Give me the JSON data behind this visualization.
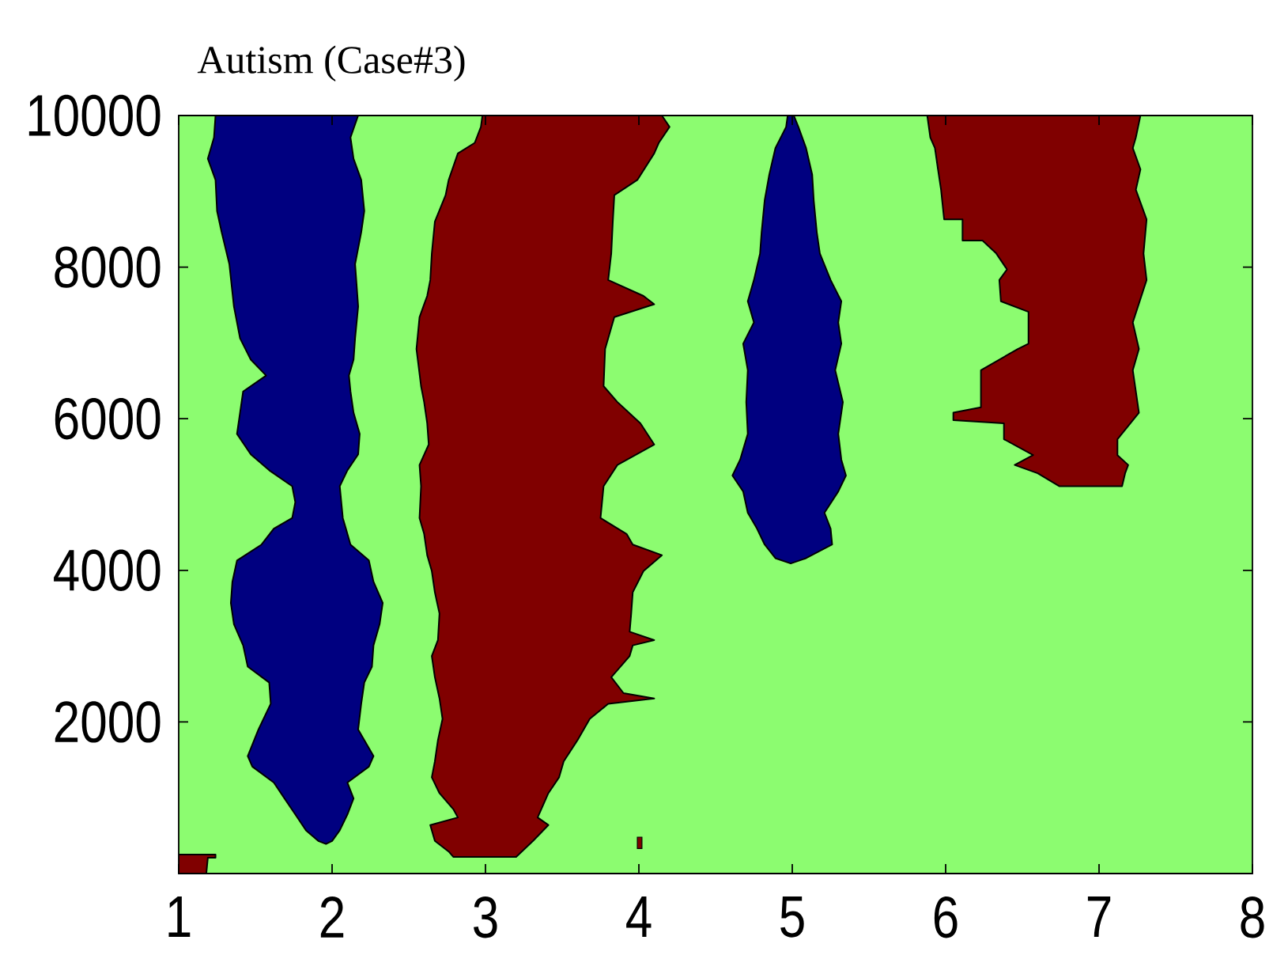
{
  "chart_data": {
    "type": "area",
    "title": "Autism (Case#3)",
    "xlim": [
      1,
      8
    ],
    "xticks": [
      1,
      2,
      3,
      4,
      5,
      6,
      7,
      8
    ],
    "ylim": [
      0,
      10000
    ],
    "yticks": [
      2000,
      4000,
      6000,
      8000,
      10000
    ],
    "bands": [
      {
        "axis": "x",
        "from": 1,
        "to": 8,
        "color": "#8cfc70"
      }
    ],
    "series": [
      {
        "color": "#000080",
        "x": [
          1.24,
          1.23,
          1.19,
          1.24,
          1.25,
          1.28,
          1.33,
          1.36,
          1.4,
          1.47,
          1.57,
          1.42,
          1.4,
          1.38,
          1.47,
          1.59,
          1.74,
          1.76,
          1.74,
          1.62,
          1.54,
          1.38,
          1.35,
          1.34,
          1.36,
          1.42,
          1.45,
          1.59,
          1.6,
          1.52,
          1.45,
          1.48,
          1.62,
          1.69,
          1.76,
          1.83,
          1.91,
          1.96,
          2.0,
          2.05,
          2.1,
          2.14,
          2.1,
          2.24,
          2.27,
          2.17,
          2.19,
          2.21,
          2.26,
          2.27,
          2.31,
          2.33,
          2.27,
          2.24,
          2.12,
          2.09,
          2.07,
          2.06,
          2.05,
          2.1,
          2.17,
          2.18,
          2.14,
          2.12,
          2.11,
          2.14,
          2.15,
          2.17,
          2.15,
          2.19,
          2.21,
          2.19,
          2.14,
          2.12,
          2.17
        ],
        "values": [
          10000,
          9710,
          9430,
          9150,
          8740,
          8460,
          8040,
          7480,
          7060,
          6780,
          6570,
          6360,
          6080,
          5800,
          5530,
          5320,
          5110,
          4900,
          4690,
          4550,
          4340,
          4130,
          3850,
          3570,
          3290,
          3010,
          2730,
          2520,
          2240,
          1900,
          1550,
          1410,
          1200,
          990,
          780,
          570,
          430,
          390,
          430,
          570,
          780,
          990,
          1200,
          1410,
          1550,
          1900,
          2240,
          2520,
          2730,
          3010,
          3290,
          3570,
          3850,
          4130,
          4340,
          4550,
          4690,
          4900,
          5110,
          5320,
          5530,
          5800,
          6080,
          6360,
          6570,
          6780,
          7060,
          7480,
          8040,
          8460,
          8740,
          9150,
          9430,
          9710,
          10000
        ]
      },
      {
        "color": "#800000",
        "x": [
          2.98,
          2.97,
          2.93,
          2.82,
          2.76,
          2.74,
          2.67,
          2.65,
          2.64,
          2.62,
          2.6,
          2.57,
          2.55,
          2.58,
          2.6,
          2.62,
          2.63,
          2.57,
          2.58,
          2.57,
          2.6,
          2.62,
          2.65,
          2.67,
          2.7,
          2.69,
          2.65,
          2.67,
          2.7,
          2.72,
          2.69,
          2.67,
          2.65,
          2.7,
          2.79,
          2.82,
          2.64,
          2.67,
          2.76,
          2.79,
          3.2,
          3.31,
          3.41,
          3.34,
          3.41,
          3.48,
          3.51,
          3.6,
          3.68,
          3.8,
          4.1,
          3.9,
          3.82,
          3.94,
          3.96,
          4.1,
          3.94,
          3.95,
          3.96,
          4.03,
          4.15,
          3.96,
          3.92,
          3.75,
          3.77,
          3.86,
          4.1,
          4.01,
          3.86,
          3.77,
          3.78,
          3.84,
          4.1,
          4.03,
          3.8,
          3.82,
          3.83,
          3.84,
          3.99,
          4.1,
          4.13,
          4.2,
          4.15
        ],
        "values": [
          10000,
          9850,
          9640,
          9500,
          9150,
          8950,
          8600,
          8180,
          7830,
          7620,
          7510,
          7340,
          6920,
          6430,
          6220,
          5940,
          5660,
          5390,
          5110,
          4690,
          4480,
          4200,
          3990,
          3710,
          3430,
          3080,
          2870,
          2590,
          2310,
          2040,
          1760,
          1480,
          1270,
          1060,
          850,
          740,
          640,
          430,
          290,
          220,
          220,
          430,
          640,
          740,
          1060,
          1270,
          1480,
          1760,
          2040,
          2240,
          2310,
          2380,
          2590,
          2870,
          3010,
          3080,
          3190,
          3430,
          3710,
          3990,
          4200,
          4340,
          4480,
          4690,
          5110,
          5390,
          5660,
          5940,
          6220,
          6430,
          6920,
          7340,
          7510,
          7620,
          7830,
          8180,
          8600,
          8950,
          9150,
          9500,
          9640,
          9850,
          10000
        ]
      },
      {
        "color": "#000080",
        "x": [
          4.97,
          4.96,
          4.89,
          4.85,
          4.82,
          4.8,
          4.79,
          4.75,
          4.71,
          4.75,
          4.68,
          4.71,
          4.7,
          4.71,
          4.66,
          4.61,
          4.68,
          4.71,
          4.77,
          4.82,
          4.89,
          4.99,
          5.09,
          5.26,
          5.25,
          5.21,
          5.3,
          5.35,
          5.32,
          5.3,
          5.33,
          5.28,
          5.32,
          5.3,
          5.32,
          5.25,
          5.18,
          5.16,
          5.14,
          5.13,
          5.09,
          5.04,
          5.01
        ],
        "values": [
          10000,
          9850,
          9570,
          9220,
          8880,
          8460,
          8180,
          7830,
          7550,
          7270,
          6990,
          6640,
          6220,
          5800,
          5460,
          5250,
          5040,
          4760,
          4550,
          4340,
          4160,
          4090,
          4160,
          4340,
          4550,
          4760,
          5040,
          5250,
          5460,
          5800,
          6220,
          6640,
          6990,
          7270,
          7550,
          7830,
          8180,
          8460,
          8880,
          9220,
          9570,
          9850,
          10000
        ]
      },
      {
        "color": "#800000",
        "x": [
          5.88,
          5.9,
          5.93,
          5.95,
          5.97,
          5.99,
          6.11,
          6.11,
          6.24,
          6.33,
          6.4,
          6.35,
          6.36,
          6.54,
          6.54,
          6.47,
          6.23,
          6.23,
          6.05,
          6.05,
          6.38,
          6.38,
          6.57,
          6.45,
          6.6,
          6.74,
          7.15,
          7.17,
          7.19,
          7.12,
          7.12,
          7.26,
          7.22,
          7.26,
          7.22,
          7.31,
          7.29,
          7.31,
          7.24,
          7.27,
          7.22,
          7.24,
          7.27
        ],
        "values": [
          10000,
          9710,
          9570,
          9290,
          9020,
          8630,
          8630,
          8350,
          8350,
          8180,
          7970,
          7830,
          7550,
          7410,
          6990,
          6920,
          6640,
          6150,
          6080,
          5980,
          5940,
          5730,
          5520,
          5390,
          5280,
          5110,
          5110,
          5280,
          5390,
          5520,
          5730,
          6080,
          6640,
          6920,
          7270,
          7830,
          8180,
          8630,
          9020,
          9290,
          9570,
          9710,
          10000
        ]
      },
      {
        "color": "#800000",
        "x": [
          1,
          1,
          1.24,
          1.24,
          1.19,
          1.18
        ],
        "values": [
          0,
          250,
          250,
          210,
          210,
          0
        ]
      },
      {
        "type": "bar",
        "color": "#800000",
        "x": [
          4.005
        ],
        "base": [
          330
        ],
        "values": [
          150
        ]
      }
    ]
  }
}
